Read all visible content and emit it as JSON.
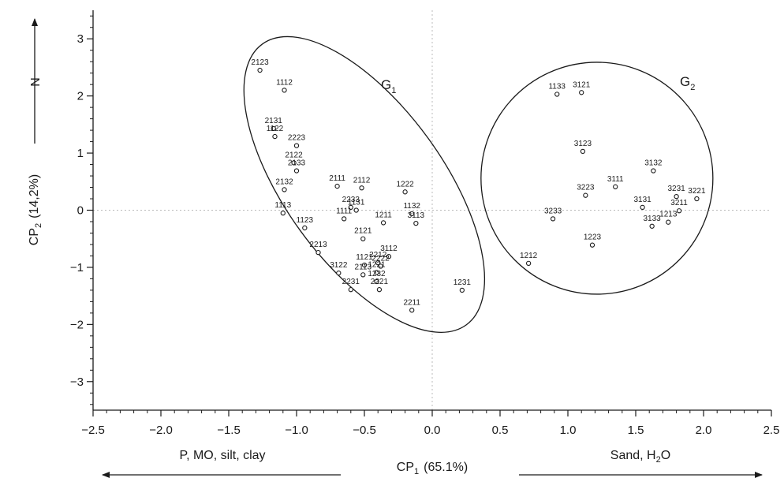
{
  "chart_data": {
    "type": "scatter",
    "x_axis": {
      "title": "CP",
      "subscript": "1",
      "value": "(65.1%)",
      "min": -2.5,
      "max": 2.5,
      "ticks": [
        "-2.5",
        "-2.0",
        "-1.5",
        "-1.0",
        "-0.5",
        "0.0",
        "0.5",
        "1.0",
        "1.5",
        "2.0",
        "2.5"
      ]
    },
    "y_axis": {
      "title": "CP",
      "subscript": "2",
      "value": "(14,2%)",
      "min": -3.5,
      "max": 3.5,
      "ticks": [
        "-3",
        "-2",
        "-1",
        "0",
        "1",
        "2",
        "3"
      ]
    },
    "reference_lines": {
      "x": 0,
      "y": 0,
      "style": "dotted"
    },
    "direction_labels": {
      "left": "P, MO, silt, clay",
      "right_prefix": "Sand, H",
      "right_sub": "2",
      "right_suffix": "O",
      "top": "N"
    },
    "groups": [
      {
        "name": "G",
        "subscript": "1",
        "shape": "ellipse"
      },
      {
        "name": "G",
        "subscript": "2",
        "shape": "circle"
      }
    ],
    "points": [
      {
        "label": "2123",
        "x": -1.27,
        "y": 2.45,
        "group": "G1"
      },
      {
        "label": "1112",
        "x": -1.09,
        "y": 2.1,
        "group": "G1"
      },
      {
        "label": "2131",
        "x": -1.17,
        "y": 1.43,
        "group": "G1"
      },
      {
        "label": "1122",
        "x": -1.16,
        "y": 1.29,
        "group": "G1"
      },
      {
        "label": "2223",
        "x": -1.0,
        "y": 1.13,
        "group": "G1"
      },
      {
        "label": "2122",
        "x": -1.02,
        "y": 0.83,
        "group": "G1"
      },
      {
        "label": "2133",
        "x": -1.0,
        "y": 0.69,
        "group": "G1"
      },
      {
        "label": "2132",
        "x": -1.09,
        "y": 0.36,
        "group": "G1"
      },
      {
        "label": "1113",
        "x": -1.1,
        "y": -0.05,
        "group": "G1"
      },
      {
        "label": "2111",
        "x": -0.7,
        "y": 0.42,
        "group": "G1"
      },
      {
        "label": "2112",
        "x": -0.52,
        "y": 0.39,
        "group": "G1"
      },
      {
        "label": "2233",
        "x": -0.6,
        "y": 0.05,
        "group": "G1"
      },
      {
        "label": "1131",
        "x": -0.56,
        "y": 0.0,
        "group": "G1"
      },
      {
        "label": "1111",
        "x": -0.65,
        "y": -0.15,
        "group": "G1"
      },
      {
        "label": "1123",
        "x": -0.94,
        "y": -0.31,
        "group": "G1"
      },
      {
        "label": "2213",
        "x": -0.84,
        "y": -0.74,
        "group": "G1"
      },
      {
        "label": "2121",
        "x": -0.51,
        "y": -0.5,
        "group": "G1"
      },
      {
        "label": "1222",
        "x": -0.2,
        "y": 0.32,
        "group": "G1"
      },
      {
        "label": "1132",
        "x": -0.15,
        "y": -0.06,
        "group": "G1"
      },
      {
        "label": "1211",
        "x": -0.36,
        "y": -0.22,
        "group": "G1"
      },
      {
        "label": "3113",
        "x": -0.12,
        "y": -0.23,
        "group": "G1"
      },
      {
        "label": "2212",
        "x": -0.4,
        "y": -0.92,
        "group": "G1"
      },
      {
        "label": "3112",
        "x": -0.32,
        "y": -0.81,
        "group": "G1"
      },
      {
        "label": "1121",
        "x": -0.5,
        "y": -0.96,
        "group": "G1"
      },
      {
        "label": "2222",
        "x": -0.38,
        "y": -0.98,
        "group": "G1"
      },
      {
        "label": "3122",
        "x": -0.69,
        "y": -1.1,
        "group": "G1"
      },
      {
        "label": "2113",
        "x": -0.51,
        "y": -1.13,
        "group": "G1"
      },
      {
        "label": "1221",
        "x": -0.41,
        "y": -1.09,
        "group": "G1"
      },
      {
        "label": "1232",
        "x": -0.41,
        "y": -1.25,
        "group": "G1"
      },
      {
        "label": "2231",
        "x": -0.6,
        "y": -1.39,
        "group": "G1"
      },
      {
        "label": "2221",
        "x": -0.39,
        "y": -1.39,
        "group": "G1"
      },
      {
        "label": "2211",
        "x": -0.15,
        "y": -1.75,
        "group": "G1"
      },
      {
        "label": "1231",
        "x": 0.22,
        "y": -1.4,
        "group": "G1"
      },
      {
        "label": "1133",
        "x": 0.92,
        "y": 2.03,
        "group": "G2"
      },
      {
        "label": "3121",
        "x": 1.1,
        "y": 2.06,
        "group": "G2"
      },
      {
        "label": "3123",
        "x": 1.11,
        "y": 1.03,
        "group": "G2"
      },
      {
        "label": "3132",
        "x": 1.63,
        "y": 0.69,
        "group": "G2"
      },
      {
        "label": "3111",
        "x": 1.35,
        "y": 0.41,
        "group": "G2"
      },
      {
        "label": "3223",
        "x": 1.13,
        "y": 0.26,
        "group": "G2"
      },
      {
        "label": "3231",
        "x": 1.8,
        "y": 0.24,
        "group": "G2"
      },
      {
        "label": "3221",
        "x": 1.95,
        "y": 0.2,
        "group": "G2"
      },
      {
        "label": "3131",
        "x": 1.55,
        "y": 0.05,
        "group": "G2"
      },
      {
        "label": "3211",
        "x": 1.82,
        "y": -0.01,
        "group": "G2"
      },
      {
        "label": "3233",
        "x": 0.89,
        "y": -0.15,
        "group": "G2"
      },
      {
        "label": "1213",
        "x": 1.74,
        "y": -0.21,
        "group": "G2"
      },
      {
        "label": "3133",
        "x": 1.62,
        "y": -0.28,
        "group": "G2"
      },
      {
        "label": "1223",
        "x": 1.18,
        "y": -0.61,
        "group": "G2"
      },
      {
        "label": "1212",
        "x": 0.71,
        "y": -0.93,
        "group": "G2"
      }
    ]
  }
}
